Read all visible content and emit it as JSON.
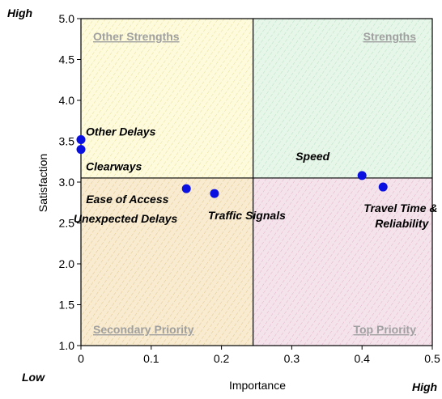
{
  "chart_data": {
    "type": "scatter",
    "title": "",
    "xlabel": "Importance",
    "ylabel": "Satisfaction",
    "xlim": [
      0,
      0.5
    ],
    "ylim": [
      1.0,
      5.0
    ],
    "x_ticks": [
      "0",
      "0.1",
      "0.2",
      "0.3",
      "0.4",
      "0.5"
    ],
    "y_ticks": [
      "1.0",
      "1.5",
      "2.0",
      "2.5",
      "3.0",
      "3.5",
      "4.0",
      "4.5",
      "5.0"
    ],
    "quadrant_split": {
      "x": 0.245,
      "y": 3.05
    },
    "corner_labels": {
      "top_left": "High",
      "bottom_left": "Low",
      "bottom_right": "High"
    },
    "quadrants": [
      {
        "label": "Other Strengths",
        "position": "top-left",
        "color": "#fdfbdc"
      },
      {
        "label": "Strengths",
        "position": "top-right",
        "color": "#e6f6e9"
      },
      {
        "label": "Secondary Priority",
        "position": "bottom-left",
        "color": "#f8ebcf"
      },
      {
        "label": "Top Priority",
        "position": "bottom-right",
        "color": "#f5e3ec"
      }
    ],
    "marker_color": "#0a10e0",
    "points": [
      {
        "label": "Other Delays",
        "x": 0.0,
        "y": 3.52
      },
      {
        "label": "Clearways",
        "x": 0.0,
        "y": 3.4
      },
      {
        "label": "Ease of Access",
        "x": 0.15,
        "y": 2.92
      },
      {
        "label": "Unexpected Delays",
        "x": 0.19,
        "y": 2.86
      },
      {
        "label": "Traffic Signals",
        "x": 0.19,
        "y": 2.86
      },
      {
        "label": "Speed",
        "x": 0.4,
        "y": 3.08
      },
      {
        "label": "Travel Time & Reliability",
        "x": 0.43,
        "y": 2.94
      }
    ]
  }
}
